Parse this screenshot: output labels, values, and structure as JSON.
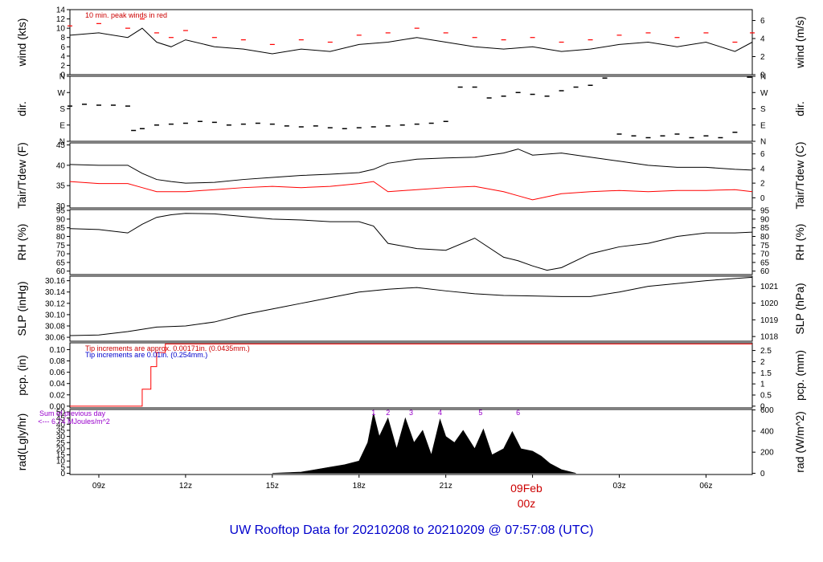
{
  "title": "UW Rooftop Data for 20210208  to  20210209 @ 07:57:08  (UTC)",
  "x_axis": {
    "ticks": [
      "09z",
      "12z",
      "15z",
      "18z",
      "21z",
      "09Feb",
      "03z",
      "06z"
    ],
    "tick_hours": [
      9,
      12,
      15,
      18,
      21,
      24,
      27,
      30
    ],
    "date_label": "09Feb",
    "date_sub": "00z",
    "range_hours": [
      8,
      31.6
    ]
  },
  "chart_data": [
    {
      "type": "line",
      "id": "wind",
      "ylabel_left": "wind (kts)",
      "ylabel_right": "wind (m/s)",
      "left_ticks": [
        "0",
        "2",
        "4",
        "6",
        "8",
        "10",
        "12",
        "14"
      ],
      "left_tick_values": [
        0,
        2,
        4,
        6,
        8,
        10,
        12,
        14
      ],
      "right_ticks": [
        "0",
        "2",
        "4",
        "6"
      ],
      "right_tick_values": [
        0,
        3.89,
        7.78,
        11.66
      ],
      "ylim": [
        0,
        14
      ],
      "annotation": "10 min. peak winds in red",
      "series": [
        {
          "name": "wind",
          "color": "#000000",
          "x": [
            8,
            9,
            10,
            10.5,
            11,
            11.5,
            12,
            13,
            14,
            15,
            16,
            17,
            18,
            19,
            20,
            21,
            22,
            23,
            24,
            25,
            26,
            27,
            28,
            29,
            30,
            31,
            31.6
          ],
          "y": [
            8.5,
            9,
            8,
            10,
            7,
            6,
            7.5,
            6,
            5.5,
            4.5,
            5.5,
            5,
            6.5,
            7,
            8,
            7,
            6,
            5.5,
            6,
            5,
            5.5,
            6.5,
            7,
            6,
            7,
            5,
            7
          ]
        },
        {
          "name": "peak",
          "color": "#ff0000",
          "x": [
            8,
            9,
            10,
            10.5,
            11,
            11.5,
            12,
            13,
            14,
            15,
            16,
            17,
            18,
            19,
            20,
            21,
            22,
            23,
            24,
            25,
            26,
            27,
            28,
            29,
            30,
            31,
            31.6
          ],
          "y": [
            10.5,
            11,
            10,
            12,
            9,
            8,
            9.5,
            8,
            7.5,
            6.5,
            7.5,
            7,
            8.5,
            9,
            10,
            9,
            8,
            7.5,
            8,
            7,
            7.5,
            8.5,
            9,
            8,
            9,
            7,
            9
          ]
        }
      ]
    },
    {
      "type": "scatter",
      "id": "dir",
      "ylabel_left": "dir.",
      "ylabel_right": "dir.",
      "left_ticks": [
        "N",
        "E",
        "S",
        "W",
        "N"
      ],
      "left_tick_values": [
        0,
        90,
        180,
        270,
        360
      ],
      "ylim": [
        0,
        360
      ],
      "series": [
        {
          "name": "dir",
          "color": "#000000",
          "x": [
            8,
            8.5,
            9,
            9.5,
            10,
            10.2,
            10.5,
            11,
            11.5,
            12,
            12.5,
            13,
            13.5,
            14,
            14.5,
            15,
            15.5,
            16,
            16.5,
            17,
            17.5,
            18,
            18.5,
            19,
            19.5,
            20,
            20.5,
            21,
            21.5,
            22,
            22.5,
            23,
            23.5,
            24,
            24.5,
            25,
            25.5,
            26,
            26.5,
            27,
            27.5,
            28,
            28.5,
            29,
            29.5,
            30,
            30.5,
            31,
            31.5
          ],
          "y": [
            195,
            205,
            200,
            200,
            195,
            60,
            70,
            90,
            95,
            100,
            110,
            105,
            90,
            95,
            100,
            95,
            85,
            80,
            85,
            75,
            70,
            75,
            80,
            85,
            90,
            95,
            100,
            110,
            300,
            300,
            240,
            250,
            270,
            260,
            250,
            280,
            300,
            310,
            350,
            40,
            30,
            20,
            30,
            40,
            20,
            30,
            20,
            50,
            355
          ]
        }
      ]
    },
    {
      "type": "line",
      "id": "temp",
      "ylabel_left": "Tair/Tdew (F)",
      "ylabel_right": "Tair/Tdew (C)",
      "left_ticks": [
        "30",
        "35",
        "40",
        "45"
      ],
      "left_tick_values": [
        30,
        35,
        40,
        45
      ],
      "right_ticks": [
        "0",
        "2",
        "4",
        "6"
      ],
      "right_tick_values": [
        32,
        35.6,
        39.2,
        42.8
      ],
      "ylim": [
        29.5,
        45.5
      ],
      "series": [
        {
          "name": "Tair",
          "color": "#000000",
          "x": [
            8,
            9,
            10,
            10.5,
            11,
            11.5,
            12,
            13,
            14,
            15,
            16,
            17,
            18,
            18.5,
            19,
            20,
            21,
            22,
            23,
            23.5,
            24,
            25,
            26,
            27,
            28,
            29,
            30,
            31,
            31.6
          ],
          "y": [
            40.2,
            40,
            40,
            38,
            36.5,
            36,
            35.6,
            35.8,
            36.5,
            37,
            37.5,
            37.8,
            38.2,
            39,
            40.5,
            41.5,
            41.8,
            42,
            43,
            44,
            42.5,
            43,
            42,
            41,
            40,
            39.5,
            39.5,
            39,
            38.8
          ]
        },
        {
          "name": "Tdew",
          "color": "#ff0000",
          "x": [
            8,
            9,
            10,
            10.5,
            11,
            11.5,
            12,
            13,
            14,
            15,
            16,
            17,
            18,
            18.5,
            19,
            20,
            21,
            22,
            23,
            23.5,
            24,
            25,
            26,
            27,
            28,
            29,
            30,
            31,
            31.6
          ],
          "y": [
            36,
            35.5,
            35.5,
            34.5,
            33.5,
            33.5,
            33.5,
            34,
            34.5,
            34.8,
            34.5,
            34.8,
            35.5,
            36,
            33.5,
            34,
            34.5,
            34.8,
            33.5,
            32.5,
            31.5,
            33,
            33.5,
            33.8,
            33.5,
            33.8,
            33.8,
            34,
            33.5
          ]
        }
      ]
    },
    {
      "type": "line",
      "id": "rh",
      "ylabel_left": "RH (%)",
      "ylabel_right": "RH (%)",
      "left_ticks": [
        "60",
        "65",
        "70",
        "75",
        "80",
        "85",
        "90",
        "95"
      ],
      "left_tick_values": [
        60,
        65,
        70,
        75,
        80,
        85,
        90,
        95
      ],
      "right_ticks": [
        "60",
        "65",
        "70",
        "75",
        "80",
        "85",
        "90",
        "95"
      ],
      "right_tick_values": [
        60,
        65,
        70,
        75,
        80,
        85,
        90,
        95
      ],
      "ylim": [
        58,
        95.5
      ],
      "series": [
        {
          "name": "RH",
          "color": "#000000",
          "x": [
            8,
            9,
            10,
            10.5,
            11,
            11.5,
            12,
            13,
            14,
            15,
            16,
            17,
            18,
            18.5,
            19,
            20,
            21,
            22,
            23,
            23.5,
            24,
            24.5,
            25,
            26,
            27,
            28,
            29,
            30,
            31,
            31.6
          ],
          "y": [
            84.5,
            84,
            82,
            87,
            91,
            92.5,
            93.3,
            93,
            91.5,
            90,
            89.5,
            88.5,
            88.5,
            86,
            76,
            73,
            72,
            79,
            68,
            66,
            63,
            60.5,
            62,
            70,
            74,
            76,
            80,
            82,
            82,
            82.5
          ]
        }
      ]
    },
    {
      "type": "line",
      "id": "slp",
      "ylabel_left": "SLP (inHg)",
      "ylabel_right": "SLP (hPa)",
      "left_ticks": [
        "30.06",
        "30.08",
        "30.10",
        "30.12",
        "30.14",
        "30.16"
      ],
      "left_tick_values": [
        30.06,
        30.08,
        30.1,
        30.12,
        30.14,
        30.16
      ],
      "right_ticks": [
        "1018",
        "1019",
        "1020",
        "1021"
      ],
      "right_tick_values": [
        30.0613,
        30.0908,
        30.1204,
        30.1499
      ],
      "ylim": [
        30.053,
        30.168
      ],
      "series": [
        {
          "name": "SLP",
          "color": "#000000",
          "x": [
            8,
            9,
            10,
            11,
            12,
            13,
            14,
            15,
            16,
            17,
            18,
            19,
            20,
            21,
            22,
            23,
            24,
            25,
            26,
            27,
            28,
            29,
            30,
            31,
            31.6
          ],
          "y": [
            30.063,
            30.064,
            30.07,
            30.078,
            30.08,
            30.087,
            30.1,
            30.11,
            30.12,
            30.13,
            30.14,
            30.145,
            30.148,
            30.142,
            30.137,
            30.134,
            30.133,
            30.132,
            30.132,
            30.14,
            30.15,
            30.155,
            30.16,
            30.164,
            30.166
          ]
        }
      ]
    },
    {
      "type": "line",
      "id": "pcp",
      "ylabel_left": "pcp. (in)",
      "ylabel_right": "pcp. (mm)",
      "left_ticks": [
        "0.00",
        "0.02",
        "0.04",
        "0.06",
        "0.08",
        "0.10"
      ],
      "left_tick_values": [
        0,
        0.02,
        0.04,
        0.06,
        0.08,
        0.1
      ],
      "right_ticks": [
        "0",
        "0.5",
        "1",
        "1.5",
        "2",
        "2.5"
      ],
      "right_tick_values": [
        0,
        0.01969,
        0.03937,
        0.05906,
        0.07874,
        0.09843
      ],
      "ylim": [
        -0.003,
        0.112
      ],
      "note_red": "Tip increments are approx. 0.00171in. (0.0435mm.)",
      "note_blue": "Tip increments are 0.01in. (0.254mm.)",
      "series": [
        {
          "name": "pcp",
          "color": "#ff0000",
          "x": [
            8,
            10.3,
            10.5,
            10.8,
            11,
            11.3,
            31.6
          ],
          "y": [
            0,
            0,
            0.03,
            0.07,
            0.095,
            0.11,
            0.11
          ]
        }
      ]
    },
    {
      "type": "area",
      "id": "rad",
      "ylabel_left": "rad(Lgly/hr)",
      "ylabel_right": "rad (W/m^2)",
      "left_ticks": [
        "0",
        "5",
        "10",
        "15",
        "20",
        "25",
        "30",
        "35",
        "40",
        "45",
        "50"
      ],
      "left_tick_values": [
        0,
        5,
        10,
        15,
        20,
        25,
        30,
        35,
        40,
        45,
        50
      ],
      "right_ticks": [
        "0",
        "200",
        "400",
        "600"
      ],
      "right_tick_values": [
        0,
        17.2,
        34.4,
        51.6
      ],
      "ylim": [
        -1,
        52
      ],
      "note_purple": "Sum of previous day",
      "note_purple2": "<--- 6.74 MJoules/m^2",
      "peak_markers": [
        "1",
        "2",
        "3",
        "4",
        "5",
        "6"
      ],
      "peak_hours": [
        18.5,
        19,
        19.8,
        20.8,
        22.2,
        23.5
      ],
      "series": [
        {
          "name": "rad",
          "color": "#000000",
          "x": [
            15,
            16,
            16.5,
            17,
            17.5,
            18,
            18.3,
            18.5,
            18.7,
            19,
            19.3,
            19.6,
            19.9,
            20.2,
            20.5,
            20.8,
            21,
            21.3,
            21.6,
            22,
            22.3,
            22.6,
            23,
            23.3,
            23.6,
            24,
            24.3,
            24.6,
            25,
            25.5
          ],
          "y": [
            0,
            1,
            3,
            5,
            7,
            10,
            25,
            49,
            30,
            45,
            20,
            45,
            25,
            35,
            15,
            44,
            30,
            25,
            35,
            20,
            36,
            15,
            20,
            34,
            20,
            18,
            14,
            8,
            3,
            0
          ]
        }
      ]
    }
  ]
}
